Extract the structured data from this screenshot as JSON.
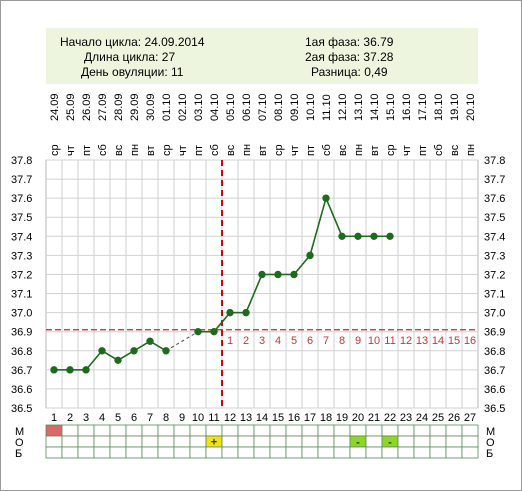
{
  "info": {
    "cycle_start": "Начало цикла: 24.09.2014",
    "cycle_length": "Длина цикла: 27",
    "ovulation_day": "День овуляции: 11",
    "phase1": "1ая фаза: 36.79",
    "phase2": "2ая фаза: 37.28",
    "difference": "Разница: 0,49"
  },
  "chart_data": {
    "type": "line",
    "days": [
      1,
      2,
      3,
      4,
      5,
      6,
      7,
      8,
      9,
      10,
      11,
      12,
      13,
      14,
      15,
      16,
      17,
      18,
      19,
      20,
      21,
      22,
      23,
      24,
      25,
      26,
      27
    ],
    "dates": [
      "24.09",
      "25.09",
      "26.09",
      "27.09",
      "28.09",
      "29.09",
      "30.09",
      "01.10",
      "02.10",
      "03.10",
      "04.10",
      "05.10",
      "06.10",
      "07.10",
      "08.10",
      "09.10",
      "10.10",
      "11.10",
      "12.10",
      "13.10",
      "14.10",
      "15.10",
      "16.10",
      "17.10",
      "18.10",
      "19.10",
      "20.10"
    ],
    "weekdays": [
      "ср",
      "чт",
      "пт",
      "сб",
      "вс",
      "пн",
      "вт",
      "ср",
      "чт",
      "пт",
      "сб",
      "вс",
      "пн",
      "вт",
      "ср",
      "чт",
      "пт",
      "сб",
      "вс",
      "пн",
      "вт",
      "ср",
      "чт",
      "пт",
      "сб",
      "вс",
      "пн"
    ],
    "temperatures": [
      36.7,
      36.7,
      36.7,
      36.8,
      36.75,
      36.8,
      36.85,
      36.8,
      null,
      36.9,
      36.9,
      37.0,
      37.0,
      37.2,
      37.2,
      37.2,
      37.3,
      37.6,
      37.4,
      37.4,
      37.4,
      37.4,
      null,
      null,
      null,
      null,
      null
    ],
    "y_ticks": [
      "37.8",
      "37.7",
      "37.6",
      "37.5",
      "37.4",
      "37.3",
      "37.2",
      "37.1",
      "37.0",
      "36.9",
      "36.8",
      "36.7",
      "36.6",
      "36.5"
    ],
    "ylim": [
      36.5,
      37.8
    ],
    "coverline": 36.91,
    "ovulation_day": 11,
    "luteal_labels": [
      "1",
      "2",
      "3",
      "4",
      "5",
      "6",
      "7",
      "8",
      "9",
      "10",
      "11",
      "12",
      "13",
      "14",
      "15",
      "16"
    ],
    "luteal_start_day": 12,
    "grid": true,
    "colors": {
      "line": "#1e6b1e",
      "point": "#1e6b1e",
      "coverline": "#cc2222",
      "ovulation": "#dd0000",
      "luteal_label": "#cc3333",
      "grid": "#d2d2d2"
    }
  },
  "bottom_rows": {
    "row1_labels": [
      "М",
      "М"
    ],
    "row2_labels": [
      "О",
      "О"
    ],
    "row3_labels": [
      "Б",
      "Б"
    ],
    "menstruation_days": [
      1
    ],
    "menstruation_color": "#d86a6a",
    "test_marks": [
      {
        "day": 11,
        "symbol": "+",
        "color": "#f2e21e"
      },
      {
        "day": 20,
        "symbol": "-",
        "color": "#8ed62a"
      },
      {
        "day": 22,
        "symbol": "-",
        "color": "#8ed62a"
      }
    ]
  }
}
